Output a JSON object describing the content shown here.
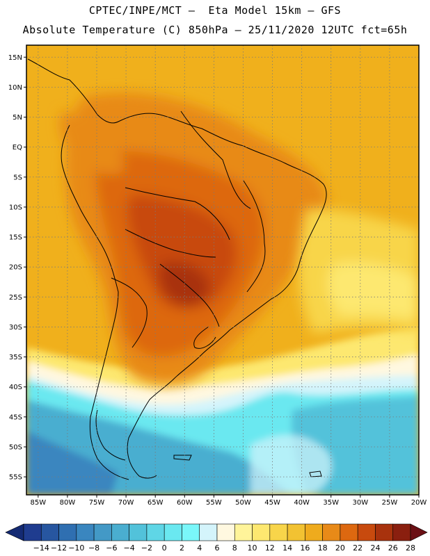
{
  "header": {
    "line1": "CPTEC/INPE/MCT –  Eta Model 15km – GFS",
    "line2": "Absolute Temperature (C) 850hPa – 25/11/2020 12UTC fct=65h"
  },
  "map": {
    "lat_labels": [
      "15N",
      "10N",
      "5N",
      "EQ",
      "5S",
      "10S",
      "15S",
      "20S",
      "25S",
      "30S",
      "35S",
      "40S",
      "45S",
      "50S",
      "55S"
    ],
    "lat_values": [
      15,
      10,
      5,
      0,
      -5,
      -10,
      -15,
      -20,
      -25,
      -30,
      -35,
      -40,
      -45,
      -50,
      -55
    ],
    "lon_labels": [
      "85W",
      "80W",
      "75W",
      "70W",
      "65W",
      "60W",
      "55W",
      "50W",
      "45W",
      "40W",
      "35W",
      "30W",
      "25W",
      "20W"
    ],
    "lon_values": [
      -85,
      -80,
      -75,
      -70,
      -65,
      -60,
      -55,
      -50,
      -45,
      -40,
      -35,
      -30,
      -25,
      -20
    ],
    "lon_range": [
      -87,
      -20
    ],
    "lat_range": [
      -58,
      17
    ]
  },
  "colorbar": {
    "labels": [
      "-14",
      "-12",
      "-10",
      "-8",
      "-6",
      "-4",
      "-2",
      "0",
      "2",
      "4",
      "6",
      "8",
      "10",
      "12",
      "14",
      "16",
      "18",
      "20",
      "22",
      "24",
      "26",
      "28"
    ],
    "colors": [
      "#1f3c8f",
      "#2756a0",
      "#2f6fb1",
      "#3a86bf",
      "#4399c6",
      "#4aaed0",
      "#52c2da",
      "#5fd6e6",
      "#6ae8f0",
      "#7af7fa",
      "#d4f4fb",
      "#fff8e0",
      "#fff49a",
      "#fde870",
      "#f8d54a",
      "#f2c232",
      "#efab1d",
      "#e88a18",
      "#dd6810",
      "#c84a0e",
      "#a8320d",
      "#8a1f0f"
    ],
    "left_cap_color": "#142a73",
    "right_cap_color": "#6b0f14"
  }
}
